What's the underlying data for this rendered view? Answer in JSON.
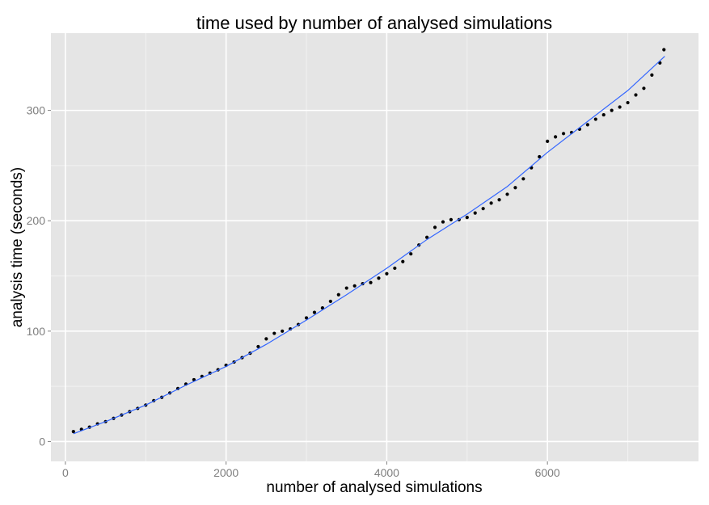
{
  "chart_data": {
    "type": "scatter",
    "title": "time used by number of analysed simulations",
    "xlabel": "number of analysed simulations",
    "ylabel": "analysis time (seconds)",
    "xlim": [
      -180,
      7880
    ],
    "ylim": [
      -18,
      370
    ],
    "x_ticks": [
      0,
      2000,
      4000,
      6000
    ],
    "x_tick_labels": [
      "0",
      "2000",
      "4000",
      "6000"
    ],
    "y_ticks": [
      0,
      100,
      200,
      300
    ],
    "y_tick_labels": [
      "0",
      "100",
      "200",
      "300"
    ],
    "x_minor_ticks": [
      1000,
      3000,
      5000,
      7000
    ],
    "y_minor_ticks": [
      50,
      150,
      250
    ],
    "grid": true,
    "legend": "none",
    "colors": {
      "panel_background": "#e5e5e5",
      "grid_major": "#ffffff",
      "grid_minor": "#f2f2f2",
      "points": "#000000",
      "trend_line": "#3366ff",
      "tick_label": "#7f7f7f"
    },
    "series": [
      {
        "kind": "points",
        "x": [
          100,
          200,
          300,
          400,
          500,
          600,
          700,
          800,
          900,
          1000,
          1100,
          1200,
          1300,
          1400,
          1500,
          1600,
          1700,
          1800,
          1900,
          2000,
          2100,
          2200,
          2300,
          2400,
          2500,
          2600,
          2700,
          2800,
          2900,
          3000,
          3100,
          3200,
          3300,
          3400,
          3500,
          3600,
          3700,
          3800,
          3900,
          4000,
          4100,
          4200,
          4300,
          4400,
          4500,
          4600,
          4700,
          4800,
          4900,
          5000,
          5100,
          5200,
          5300,
          5400,
          5500,
          5600,
          5700,
          5800,
          5900,
          6000,
          6100,
          6200,
          6300,
          6400,
          6500,
          6600,
          6700,
          6800,
          6900,
          7000,
          7100,
          7200,
          7300,
          7400,
          7450
        ],
        "y": [
          9,
          11,
          13,
          16,
          18,
          21,
          24,
          27,
          30,
          33,
          37,
          40,
          44,
          48,
          52,
          56,
          59,
          62,
          65,
          69,
          72,
          76,
          80,
          86,
          93,
          98,
          100,
          102,
          106,
          112,
          117,
          121,
          127,
          133,
          139,
          141,
          143,
          144,
          148,
          152,
          157,
          163,
          170,
          178,
          185,
          194,
          199,
          201,
          201,
          203,
          207,
          211,
          216,
          219,
          224,
          230,
          238,
          248,
          258,
          272,
          276,
          279,
          280,
          283,
          287,
          292,
          296,
          300,
          303,
          307,
          314,
          320,
          332,
          343,
          355
        ]
      },
      {
        "kind": "smooth-line",
        "x": [
          100,
          500,
          1000,
          1500,
          2000,
          2500,
          3000,
          3500,
          4000,
          4500,
          5000,
          5500,
          6000,
          6500,
          7000,
          7460
        ],
        "y": [
          7,
          18,
          33,
          51,
          68,
          88,
          110,
          133,
          157,
          183,
          206,
          231,
          262,
          290,
          318,
          349
        ]
      }
    ]
  }
}
